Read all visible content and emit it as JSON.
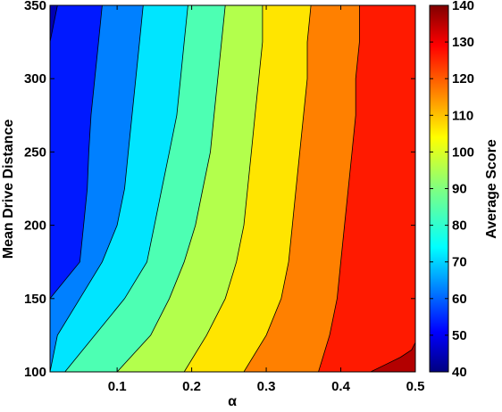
{
  "chart_data": {
    "type": "contour",
    "xlabel": "α",
    "ylabel": "Mean Drive Distance",
    "colorbar_label": "Average Score",
    "xlim": [
      0.01,
      0.5
    ],
    "ylim": [
      100,
      350
    ],
    "x_ticks": [
      0.1,
      0.2,
      0.3,
      0.4,
      0.5
    ],
    "y_ticks": [
      100,
      150,
      200,
      250,
      300,
      350
    ],
    "colorbar_range": [
      40,
      140
    ],
    "colorbar_ticks": [
      40,
      50,
      60,
      70,
      80,
      90,
      100,
      110,
      120,
      130,
      140
    ],
    "contour_levels": [
      50,
      60,
      70,
      80,
      90,
      100,
      110,
      120,
      130
    ],
    "contour_x_at_y": [
      {
        "level": 50,
        "y": [
          100,
          125,
          150,
          175,
          200,
          225,
          250,
          275,
          300,
          325,
          350
        ],
        "x": [
          0.01,
          0.01,
          0.01,
          0.01,
          0.01,
          0.01,
          0.01,
          0.01,
          0.01,
          0.01,
          0.02
        ]
      },
      {
        "level": 60,
        "y": [
          100,
          125,
          150,
          175,
          200,
          225,
          250,
          275,
          300,
          325,
          350
        ],
        "x": [
          0.01,
          0.01,
          0.01,
          0.05,
          0.055,
          0.06,
          0.062,
          0.065,
          0.07,
          0.075,
          0.08
        ]
      },
      {
        "level": 70,
        "y": [
          100,
          125,
          150,
          175,
          200,
          225,
          250,
          275,
          300,
          325,
          350
        ],
        "x": [
          0.01,
          0.02,
          0.05,
          0.08,
          0.1,
          0.11,
          0.115,
          0.12,
          0.125,
          0.13,
          0.135
        ]
      },
      {
        "level": 80,
        "y": [
          100,
          125,
          150,
          175,
          200,
          225,
          250,
          275,
          300,
          325,
          350
        ],
        "x": [
          0.03,
          0.07,
          0.11,
          0.14,
          0.15,
          0.16,
          0.17,
          0.18,
          0.185,
          0.19,
          0.195
        ]
      },
      {
        "level": 90,
        "y": [
          100,
          125,
          150,
          175,
          200,
          225,
          250,
          275,
          300,
          325,
          350
        ],
        "x": [
          0.1,
          0.145,
          0.17,
          0.19,
          0.205,
          0.215,
          0.225,
          0.23,
          0.235,
          0.24,
          0.245
        ]
      },
      {
        "level": 100,
        "y": [
          100,
          125,
          150,
          175,
          200,
          225,
          250,
          275,
          300,
          325,
          350
        ],
        "x": [
          0.19,
          0.22,
          0.245,
          0.26,
          0.27,
          0.275,
          0.28,
          0.285,
          0.29,
          0.295,
          0.295
        ]
      },
      {
        "level": 110,
        "y": [
          100,
          125,
          150,
          175,
          200,
          225,
          250,
          275,
          300,
          325,
          350
        ],
        "x": [
          0.27,
          0.3,
          0.32,
          0.33,
          0.335,
          0.34,
          0.345,
          0.35,
          0.355,
          0.355,
          0.36
        ]
      },
      {
        "level": 120,
        "y": [
          100,
          125,
          150,
          175,
          200,
          225,
          250,
          275,
          300,
          325,
          350
        ],
        "x": [
          0.37,
          0.385,
          0.395,
          0.4,
          0.405,
          0.41,
          0.415,
          0.42,
          0.42,
          0.425,
          0.425
        ]
      },
      {
        "level": 130,
        "y": [
          100,
          105,
          110,
          115,
          120
        ],
        "x": [
          0.44,
          0.46,
          0.48,
          0.495,
          0.5
        ]
      }
    ],
    "grid": false,
    "colormap": "jet"
  }
}
